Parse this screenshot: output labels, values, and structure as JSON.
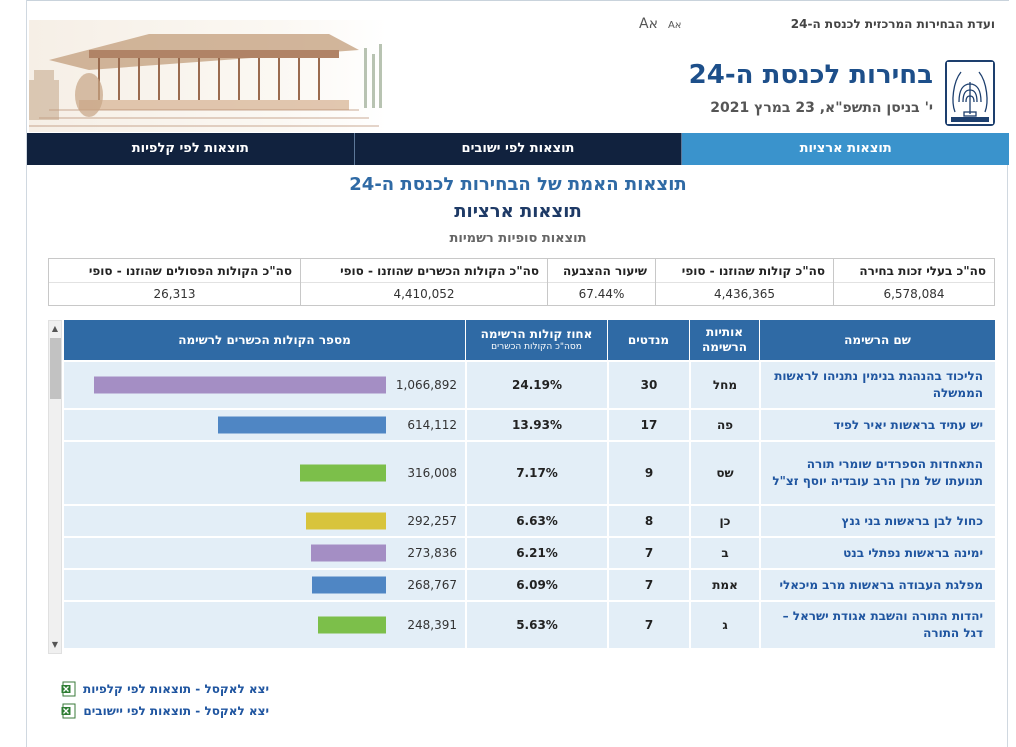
{
  "header": {
    "site_name": "ועדת הבחירות המרכזית לכנסת ה-24",
    "font_large": "Aא",
    "font_small": "Aא",
    "main_title": "בחירות לכנסת ה-24",
    "sub_date": "י' בניסן התשפ\"א, 23 במרץ 2021"
  },
  "nav": {
    "tabs": [
      {
        "label": "תוצאות ארציות",
        "active": true
      },
      {
        "label": "תוצאות לפי ישובים",
        "active": false
      },
      {
        "label": "תוצאות לפי קלפיות",
        "active": false
      }
    ]
  },
  "titles": {
    "title1": "תוצאות האמת של הבחירות לכנסת ה-24",
    "title2": "תוצאות ארציות",
    "title3": "תוצאות סופיות רשמיות"
  },
  "summary": [
    {
      "label": "סה\"כ בעלי זכות בחירה",
      "value": "6,578,084"
    },
    {
      "label": "סה\"כ קולות שהוזנו - סופי",
      "value": "4,436,365"
    },
    {
      "label": "שיעור ההצבעה",
      "value": "67.44%"
    },
    {
      "label": "סה\"כ הקולות הכשרים שהוזנו - סופי",
      "value": "4,410,052"
    },
    {
      "label": "סה\"כ הקולות הפסולים שהוזנו - סופי",
      "value": "26,313"
    }
  ],
  "results": {
    "headers": {
      "name": "שם הרשימה",
      "letters_line1": "אותיות",
      "letters_line2": "הרשימה",
      "seats": "מנדטים",
      "pct_line1": "אחוז קולות הרשימה",
      "pct_line2": "מסה\"כ הקולות הכשרים",
      "votes": "מספר הקולות הכשרים לרשימה"
    },
    "max_votes": 1066892,
    "rows": [
      {
        "name": "הליכוד בהנהגת בנימין נתניהו לראשות הממשלה",
        "letters": "מחל",
        "seats": "30",
        "pct": "24.19%",
        "votes": 1066892,
        "votes_label": "1,066,892",
        "color": "#a48ec4"
      },
      {
        "name": "יש עתיד בראשות יאיר לפיד",
        "letters": "פה",
        "seats": "17",
        "pct": "13.93%",
        "votes": 614112,
        "votes_label": "614,112",
        "color": "#4f86c4"
      },
      {
        "name": "התאחדות הספרדים שומרי תורה תנועתו של מרן הרב עובדיה יוסף זצ\"ל",
        "letters": "שס",
        "seats": "9",
        "pct": "7.17%",
        "votes": 316008,
        "votes_label": "316,008",
        "color": "#7cbf4a"
      },
      {
        "name": "כחול לבן בראשות בני גנץ",
        "letters": "כן",
        "seats": "8",
        "pct": "6.63%",
        "votes": 292257,
        "votes_label": "292,257",
        "color": "#d8c43c"
      },
      {
        "name": "ימינה בראשות נפתלי בנט",
        "letters": "ב",
        "seats": "7",
        "pct": "6.21%",
        "votes": 273836,
        "votes_label": "273,836",
        "color": "#a48ec4"
      },
      {
        "name": "מפלגת העבודה בראשות מרב מיכאלי",
        "letters": "אמת",
        "seats": "7",
        "pct": "6.09%",
        "votes": 268767,
        "votes_label": "268,767",
        "color": "#4f86c4"
      },
      {
        "name": "יהדות התורה והשבת אגודת ישראל – דגל התורה",
        "letters": "ג",
        "seats": "7",
        "pct": "5.63%",
        "votes": 248391,
        "votes_label": "248,391",
        "color": "#7cbf4a"
      }
    ]
  },
  "excel": {
    "by_ballot": "יצא לאקסל - תוצאות לפי קלפיות",
    "by_settlement": "יצא לאקסל - תוצאות לפי יישובים"
  },
  "icons": [
    "israel-emblem-icon",
    "excel-icon",
    "scroll-up-icon",
    "scroll-down-icon"
  ]
}
